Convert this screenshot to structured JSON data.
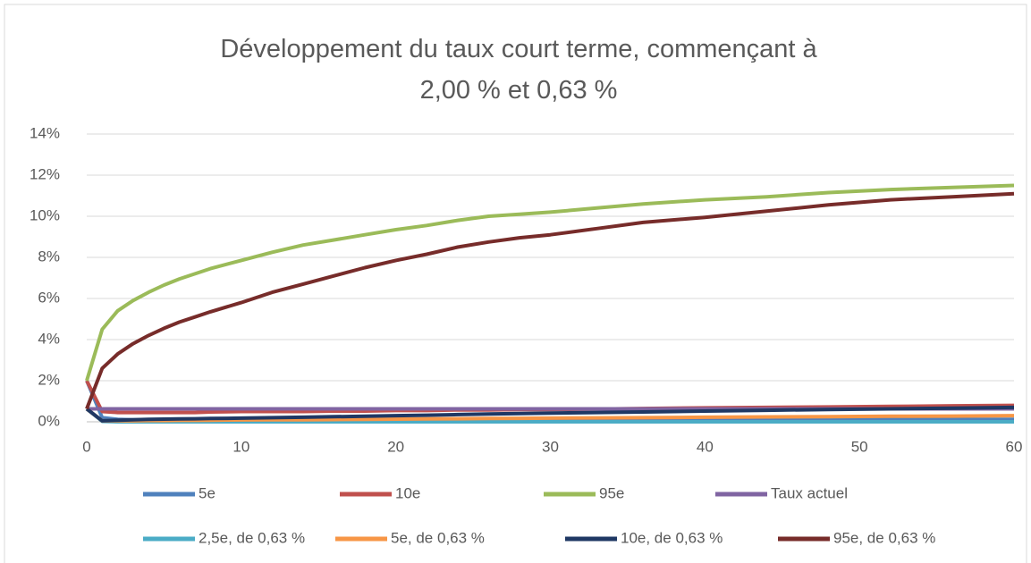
{
  "chart_data": {
    "type": "line",
    "title": "Développement du taux court terme, commençant à 2,00 % et 0,63 %",
    "x": [
      0,
      1,
      2,
      3,
      4,
      5,
      6,
      7,
      8,
      10,
      12,
      14,
      16,
      18,
      20,
      22,
      24,
      26,
      28,
      30,
      33,
      36,
      40,
      44,
      48,
      52,
      56,
      60
    ],
    "xlim": [
      0,
      60
    ],
    "xticks": [
      0,
      10,
      20,
      30,
      40,
      50,
      60
    ],
    "ylim": [
      0,
      14
    ],
    "yticks": [
      {
        "value": 0,
        "label": "0%"
      },
      {
        "value": 2,
        "label": "2%"
      },
      {
        "value": 4,
        "label": "4%"
      },
      {
        "value": 6,
        "label": "6%"
      },
      {
        "value": 8,
        "label": "8%"
      },
      {
        "value": 10,
        "label": "10%"
      },
      {
        "value": 12,
        "label": "12%"
      },
      {
        "value": 14,
        "label": "14%"
      }
    ],
    "grid": true,
    "legend": "bottom",
    "series": [
      {
        "name": "5e",
        "color": "#4f81bd",
        "values": [
          2.0,
          0.2,
          0.12,
          0.1,
          0.1,
          0.1,
          0.1,
          0.1,
          0.1,
          0.1,
          0.1,
          0.1,
          0.1,
          0.1,
          0.1,
          0.1,
          0.1,
          0.1,
          0.1,
          0.1,
          0.12,
          0.12,
          0.12,
          0.12,
          0.12,
          0.12,
          0.12,
          0.12
        ]
      },
      {
        "name": "10e",
        "color": "#c0504d",
        "values": [
          2.0,
          0.5,
          0.45,
          0.45,
          0.45,
          0.45,
          0.45,
          0.45,
          0.48,
          0.5,
          0.5,
          0.5,
          0.52,
          0.52,
          0.55,
          0.55,
          0.58,
          0.58,
          0.6,
          0.6,
          0.62,
          0.65,
          0.68,
          0.7,
          0.72,
          0.75,
          0.78,
          0.8
        ]
      },
      {
        "name": "95e",
        "color": "#9bbb59",
        "values": [
          2.0,
          4.5,
          5.4,
          5.9,
          6.3,
          6.65,
          6.95,
          7.2,
          7.45,
          7.85,
          8.25,
          8.6,
          8.85,
          9.1,
          9.35,
          9.55,
          9.8,
          10.0,
          10.1,
          10.2,
          10.4,
          10.6,
          10.8,
          10.95,
          11.15,
          11.3,
          11.4,
          11.5
        ]
      },
      {
        "name": "Taux actuel",
        "color": "#8064a2",
        "values": [
          0.63,
          0.63,
          0.63,
          0.63,
          0.63,
          0.63,
          0.63,
          0.63,
          0.63,
          0.63,
          0.63,
          0.63,
          0.63,
          0.63,
          0.63,
          0.63,
          0.63,
          0.63,
          0.63,
          0.63,
          0.63,
          0.63,
          0.63,
          0.63,
          0.63,
          0.63,
          0.63,
          0.63
        ]
      },
      {
        "name": "2,5e, de 0,63 %",
        "color": "#4bacc6",
        "values": [
          0.63,
          0.02,
          0,
          0,
          0,
          0,
          0,
          0,
          0,
          0,
          0,
          0,
          0,
          0,
          0,
          0,
          0,
          0,
          0,
          0,
          0,
          0,
          0,
          0,
          0,
          0,
          0,
          0
        ]
      },
      {
        "name": "5e, de 0,63 %",
        "color": "#f79646",
        "values": [
          0.63,
          0.05,
          0.05,
          0.05,
          0.06,
          0.06,
          0.07,
          0.07,
          0.08,
          0.09,
          0.1,
          0.1,
          0.11,
          0.12,
          0.13,
          0.14,
          0.15,
          0.16,
          0.17,
          0.18,
          0.19,
          0.2,
          0.22,
          0.24,
          0.25,
          0.27,
          0.28,
          0.3
        ]
      },
      {
        "name": "10e, de 0,63 %",
        "color": "#1f3864",
        "values": [
          0.63,
          0.05,
          0.08,
          0.1,
          0.12,
          0.13,
          0.14,
          0.15,
          0.16,
          0.18,
          0.2,
          0.22,
          0.25,
          0.27,
          0.3,
          0.32,
          0.35,
          0.38,
          0.4,
          0.42,
          0.45,
          0.48,
          0.52,
          0.56,
          0.6,
          0.63,
          0.66,
          0.7
        ]
      },
      {
        "name": "95e, de 0,63 %",
        "color": "#772c2a",
        "values": [
          0.63,
          2.6,
          3.3,
          3.8,
          4.2,
          4.55,
          4.85,
          5.1,
          5.35,
          5.8,
          6.3,
          6.7,
          7.1,
          7.5,
          7.85,
          8.15,
          8.5,
          8.75,
          8.95,
          9.1,
          9.4,
          9.7,
          9.95,
          10.25,
          10.55,
          10.8,
          10.95,
          11.1
        ]
      }
    ]
  }
}
